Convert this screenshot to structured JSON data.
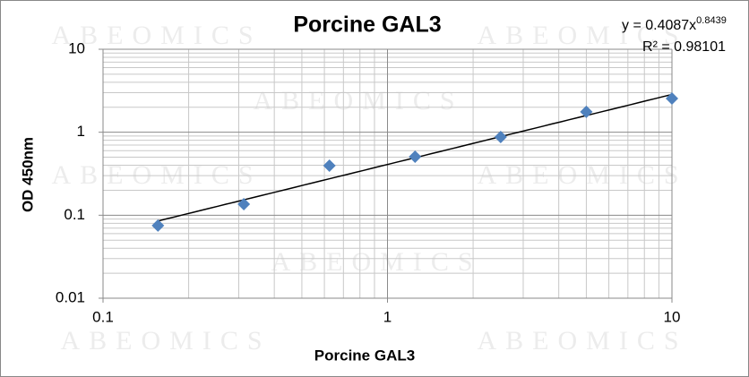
{
  "chart_data": {
    "type": "scatter",
    "title": "Porcine GAL3",
    "x_label": "Porcine GAL3",
    "y_label": "OD 450nm",
    "watermark": "ABEOMICS",
    "x": [
      0.156,
      0.3125,
      0.625,
      1.25,
      2.5,
      5,
      10
    ],
    "series": [
      {
        "color": "#4f81bd",
        "values": [
          0.075,
          0.136,
          0.395,
          0.507,
          0.877,
          1.76,
          2.55
        ]
      }
    ],
    "xlim": [
      0.1,
      10
    ],
    "ylim": [
      0.01,
      10
    ],
    "xticks": [
      0.1,
      1,
      10
    ],
    "yticks": [
      0.01,
      0.1,
      1,
      10
    ],
    "log_x": true,
    "log_y": true,
    "grid": true,
    "minor_grid": true,
    "trendline": {
      "equation": "y = 0.4087x",
      "exponent": "0.8439",
      "r_squared": "R² = 0.98101",
      "coefficient": 0.4087,
      "power": 0.8439,
      "color": "#000000"
    }
  }
}
